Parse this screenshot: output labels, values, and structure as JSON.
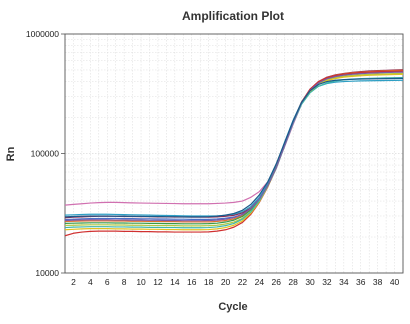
{
  "chart_data": {
    "type": "line",
    "title": "Amplification Plot",
    "xlabel": "Cycle",
    "ylabel": "Rn",
    "yscale": "log",
    "xlim": [
      1,
      41
    ],
    "ylim": [
      10000,
      1000000
    ],
    "x_ticks": [
      2,
      4,
      6,
      8,
      10,
      12,
      14,
      16,
      18,
      20,
      22,
      24,
      26,
      28,
      30,
      32,
      34,
      36,
      38,
      40
    ],
    "x_tick_labels": [
      "2",
      "4",
      "6",
      "8",
      "10",
      "12",
      "14",
      "16",
      "18",
      "20",
      "22",
      "24",
      "26",
      "28",
      "30",
      "32",
      "34",
      "36",
      "38",
      "40"
    ],
    "y_ticks": [
      10000,
      100000,
      1000000
    ],
    "y_tick_labels": [
      "10000",
      "100000",
      "1000000"
    ],
    "grid": true,
    "legend": "none",
    "x": [
      1,
      2,
      3,
      4,
      5,
      6,
      7,
      8,
      9,
      10,
      11,
      12,
      13,
      14,
      15,
      16,
      17,
      18,
      19,
      20,
      21,
      22,
      23,
      24,
      25,
      26,
      27,
      28,
      29,
      30,
      31,
      32,
      33,
      34,
      35,
      36,
      37,
      38,
      39,
      40,
      41
    ],
    "series": [
      {
        "color": "#d070b0",
        "values": [
          37000,
          37500,
          38000,
          38500,
          38800,
          39000,
          39000,
          38800,
          38600,
          38500,
          38400,
          38300,
          38200,
          38100,
          38000,
          38000,
          38000,
          38000,
          38200,
          38500,
          39000,
          40000,
          43000,
          48000,
          58000,
          78000,
          115000,
          175000,
          260000,
          340000,
          395000,
          430000,
          450000,
          462000,
          470000,
          476000,
          480000,
          483000,
          486000,
          488000,
          490000
        ]
      },
      {
        "color": "#2e9fc4",
        "values": [
          30500,
          30700,
          30900,
          31000,
          31000,
          31000,
          30900,
          30800,
          30700,
          30600,
          30500,
          30400,
          30300,
          30200,
          30100,
          30000,
          30000,
          30000,
          30100,
          30400,
          31000,
          32500,
          36000,
          43000,
          56000,
          80000,
          125000,
          190000,
          270000,
          330000,
          365000,
          385000,
          395000,
          400000,
          403000,
          405000,
          406000,
          407000,
          408000,
          409000,
          410000
        ]
      },
      {
        "color": "#8a2a52",
        "values": [
          29000,
          29300,
          29500,
          29700,
          29800,
          29800,
          29800,
          29700,
          29700,
          29600,
          29600,
          29500,
          29500,
          29400,
          29400,
          29300,
          29300,
          29300,
          29500,
          29800,
          30400,
          31800,
          35000,
          41500,
          53500,
          76000,
          118000,
          185000,
          270000,
          345000,
          400000,
          435000,
          455000,
          468000,
          478000,
          485000,
          490000,
          494000,
          497000,
          500000,
          502000
        ]
      },
      {
        "color": "#4a6fc7",
        "values": [
          28000,
          28200,
          28400,
          28500,
          28600,
          28600,
          28600,
          28500,
          28500,
          28400,
          28400,
          28300,
          28300,
          28200,
          28200,
          28100,
          28100,
          28100,
          28300,
          28700,
          29400,
          31000,
          34500,
          41000,
          53000,
          75000,
          116000,
          180000,
          265000,
          340000,
          395000,
          428000,
          447000,
          460000,
          469000,
          475000,
          480000,
          484000,
          487000,
          490000,
          492000
        ]
      },
      {
        "color": "#e07030",
        "values": [
          27000,
          27100,
          27200,
          27300,
          27300,
          27300,
          27200,
          27200,
          27100,
          27100,
          27000,
          27000,
          26900,
          26900,
          26800,
          26800,
          26800,
          26800,
          27000,
          27500,
          28400,
          30200,
          34000,
          41000,
          53500,
          76000,
          118000,
          183000,
          268000,
          342000,
          398000,
          432000,
          452000,
          465000,
          474000,
          480000,
          485000,
          489000,
          492000,
          495000,
          497000
        ]
      },
      {
        "color": "#3a9a4a",
        "values": [
          26000,
          26100,
          26200,
          26300,
          26300,
          26300,
          26200,
          26200,
          26100,
          26100,
          26000,
          26000,
          25900,
          25900,
          25800,
          25800,
          25800,
          25900,
          26100,
          26700,
          27700,
          29700,
          33700,
          41000,
          54000,
          77000,
          119000,
          184000,
          268000,
          340000,
          393000,
          425000,
          444000,
          456000,
          464000,
          470000,
          474000,
          477000,
          480000,
          482000,
          484000
        ]
      },
      {
        "color": "#b0c840",
        "values": [
          25000,
          25100,
          25200,
          25300,
          25300,
          25300,
          25200,
          25200,
          25100,
          25100,
          25000,
          25000,
          24900,
          24900,
          24800,
          24800,
          24800,
          24900,
          25100,
          25700,
          26700,
          28700,
          32700,
          40000,
          53000,
          76000,
          118000,
          183000,
          265000,
          335000,
          385000,
          415000,
          432000,
          443000,
          450000,
          455000,
          459000,
          462000,
          464000,
          466000,
          468000
        ]
      },
      {
        "color": "#d03030",
        "values": [
          20500,
          21500,
          22000,
          22300,
          22400,
          22400,
          22400,
          22300,
          22300,
          22200,
          22200,
          22100,
          22100,
          22000,
          22000,
          22000,
          22000,
          22100,
          22400,
          23000,
          24200,
          26500,
          31000,
          39000,
          52500,
          76000,
          118000,
          183000,
          268000,
          345000,
          400000,
          432000,
          450000,
          462000,
          470000,
          476000,
          480000,
          483000,
          486000,
          488000,
          490000
        ]
      },
      {
        "color": "#e0c020",
        "values": [
          23000,
          23200,
          23400,
          23500,
          23500,
          23500,
          23400,
          23400,
          23300,
          23300,
          23200,
          23200,
          23100,
          23100,
          23000,
          23000,
          23000,
          23100,
          23400,
          24000,
          25100,
          27300,
          31700,
          39500,
          53000,
          76000,
          118000,
          182000,
          262000,
          330000,
          378000,
          407000,
          424000,
          435000,
          442000,
          447000,
          451000,
          454000,
          456000,
          458000,
          460000
        ]
      },
      {
        "color": "#40b8a8",
        "values": [
          24000,
          24200,
          24300,
          24400,
          24400,
          24400,
          24300,
          24300,
          24200,
          24200,
          24100,
          24100,
          24000,
          24000,
          23900,
          23900,
          23900,
          24000,
          24300,
          24900,
          26000,
          28200,
          32500,
          40200,
          53500,
          76000,
          117000,
          180000,
          258000,
          322000,
          365000,
          390000,
          404000,
          413000,
          419000,
          423000,
          426000,
          428000,
          430000,
          431000,
          432000
        ]
      },
      {
        "color": "#7a5aa8",
        "values": [
          27500,
          27700,
          27800,
          27900,
          27900,
          27900,
          27800,
          27800,
          27700,
          27700,
          27600,
          27600,
          27500,
          27500,
          27400,
          27400,
          27400,
          27500,
          27700,
          28200,
          29100,
          30900,
          34600,
          41600,
          54000,
          76500,
          118000,
          183000,
          266000,
          338000,
          390000,
          422000,
          440000,
          452000,
          460000,
          466000,
          470000,
          473000,
          476000,
          478000,
          480000
        ]
      },
      {
        "color": "#1a5a8a",
        "values": [
          29500,
          29700,
          29900,
          30000,
          30000,
          30000,
          29900,
          29900,
          29800,
          29800,
          29700,
          29700,
          29600,
          29600,
          29500,
          29500,
          29500,
          29600,
          29900,
          30500,
          31500,
          33500,
          37500,
          45000,
          58000,
          82000,
          124000,
          188000,
          268000,
          335000,
          378000,
          400000,
          410000,
          415000,
          418000,
          420000,
          421000,
          422000,
          423000,
          424000,
          425000
        ]
      }
    ]
  }
}
